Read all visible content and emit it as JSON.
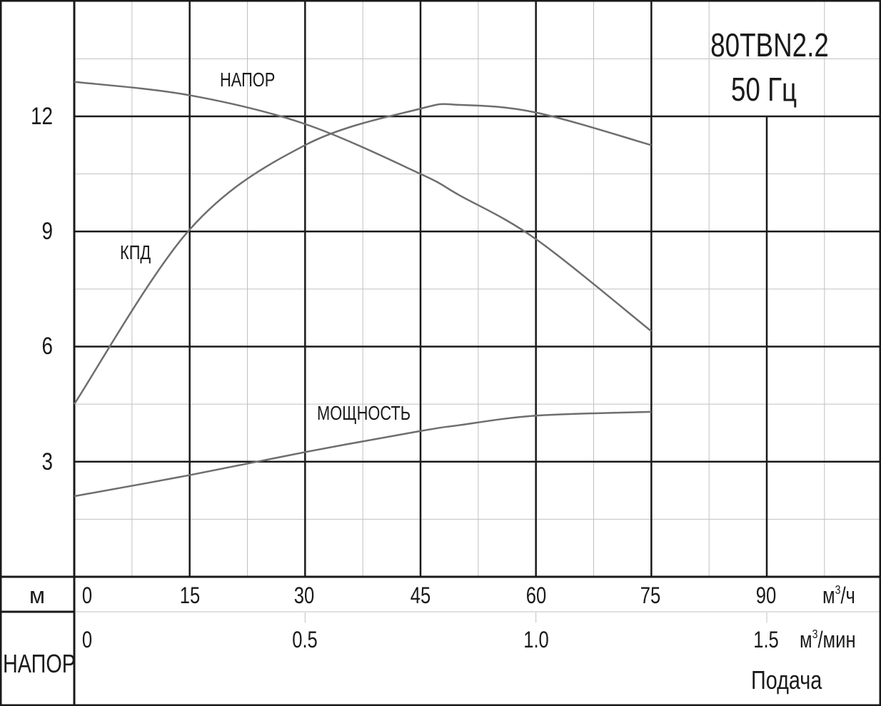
{
  "title": {
    "model": "80TBN2.2",
    "frequency": "50 Гц"
  },
  "y_axis": {
    "unit_label": "м",
    "name_label": "НАПОР",
    "ticks": [
      "12",
      "9",
      "6",
      "3"
    ]
  },
  "x_axis_primary": {
    "ticks": [
      "0",
      "15",
      "30",
      "45",
      "60",
      "75",
      "90"
    ],
    "unit_base": "м",
    "unit_sup": "3",
    "unit_tail": "/ч"
  },
  "x_axis_secondary": {
    "ticks": [
      "0",
      "0.5",
      "1.0",
      "1.5"
    ],
    "unit_base": "м",
    "unit_sup": "3",
    "unit_tail": "/мин"
  },
  "x_axis_name": "Подача",
  "curve_labels": {
    "head": "НАПОР",
    "efficiency": "КПД",
    "power": "МОЩНОСТЬ"
  },
  "colors": {
    "major_grid": "#1a1a1a",
    "minor_grid": "#c0c0c0",
    "curve": "#6e6e6e",
    "background": "#ffffff"
  },
  "chart_data": {
    "type": "line",
    "title": "80TBN2.2 50 Гц",
    "xlabel": "Подача (м³/ч)",
    "xlabel_secondary": "м³/мин",
    "ylabel": "НАПОР (м)",
    "xlim": [
      0,
      105
    ],
    "ylim": [
      0,
      15
    ],
    "grid": true,
    "x_ticks": [
      0,
      15,
      30,
      45,
      60,
      75,
      90
    ],
    "x_ticks_secondary": [
      0,
      0.5,
      1.0,
      1.5
    ],
    "y_ticks": [
      3,
      6,
      9,
      12
    ],
    "x": [
      0,
      15,
      30,
      45,
      50,
      60,
      75
    ],
    "series": [
      {
        "name": "НАПОР",
        "values": [
          12.9,
          12.55,
          11.8,
          10.5,
          9.95,
          8.8,
          6.4
        ]
      },
      {
        "name": "КПД",
        "values": [
          4.5,
          9.05,
          11.25,
          12.2,
          12.3,
          12.1,
          11.25
        ]
      },
      {
        "name": "МОЩНОСТЬ",
        "values": [
          2.1,
          2.65,
          3.25,
          3.8,
          3.95,
          4.2,
          4.3
        ]
      }
    ]
  }
}
